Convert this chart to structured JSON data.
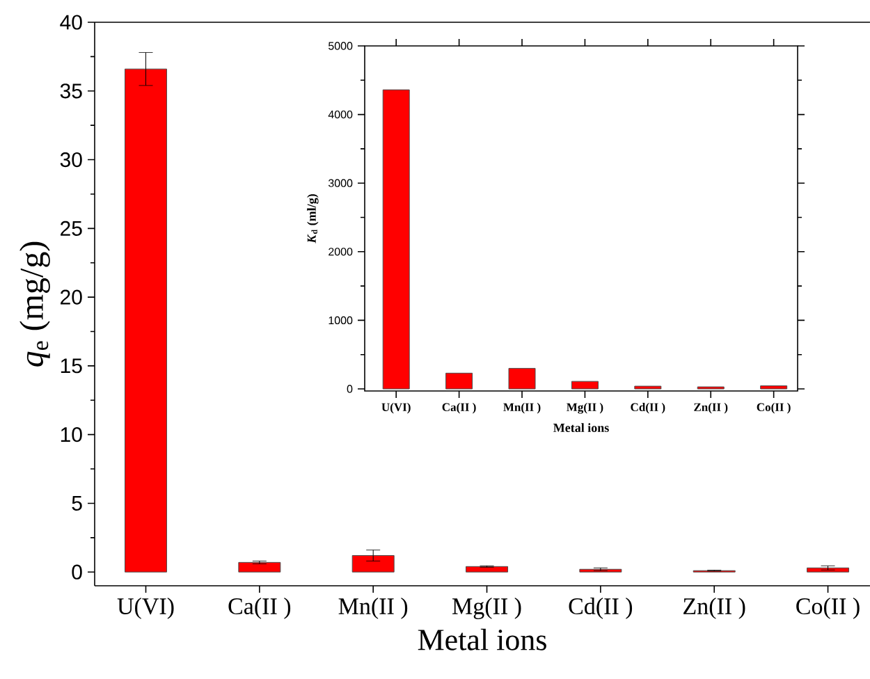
{
  "chart_data": [
    {
      "type": "bar",
      "xlabel": "Metal ions",
      "ylabel": "*q*$_{e}$ (mg/g)",
      "categories": [
        "U(VI)",
        "Ca(II )",
        "Mn(II )",
        "Mg(II )",
        "Cd(II )",
        "Zn(II )",
        "Co(II )"
      ],
      "values": [
        36.6,
        0.7,
        1.2,
        0.4,
        0.2,
        0.1,
        0.3
      ],
      "errors": [
        1.2,
        0.1,
        0.4,
        0.05,
        0.1,
        0.03,
        0.15
      ],
      "color": "#ff0000",
      "ylim": [
        -1,
        40
      ],
      "yticks": [
        0,
        5,
        10,
        15,
        20,
        25,
        30,
        35,
        40
      ]
    },
    {
      "type": "bar",
      "xlabel": "Metal ions",
      "ylabel": "*K*$_{d}$ (ml/g)",
      "categories": [
        "U(VI)",
        "Ca(II )",
        "Mn(II )",
        "Mg(II )",
        "Cd(II )",
        "Zn(II )",
        "Co(II )"
      ],
      "values": [
        4360,
        230,
        300,
        110,
        40,
        30,
        45
      ],
      "color": "#ff0000",
      "ylim": [
        -30,
        5000
      ],
      "yticks": [
        0,
        1000,
        2000,
        3000,
        4000,
        5000
      ]
    }
  ]
}
